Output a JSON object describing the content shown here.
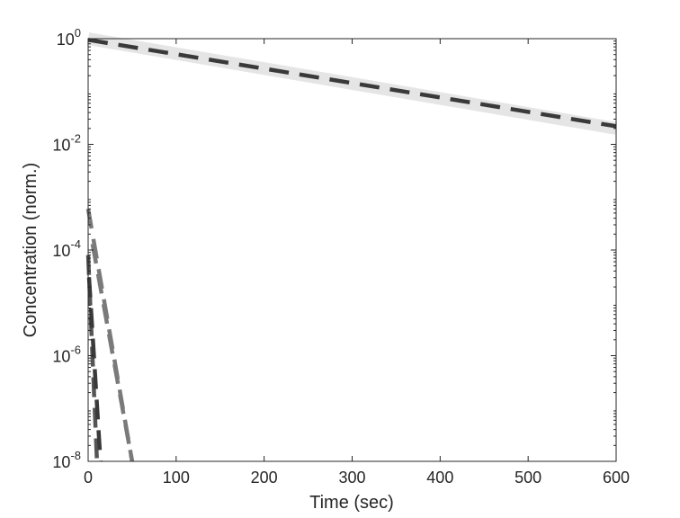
{
  "chart_data": {
    "type": "line",
    "xlabel": "Time (sec)",
    "ylabel": "Concentration (norm.)",
    "xlim": [
      0,
      600
    ],
    "ylim": [
      1e-08,
      1
    ],
    "yscale": "log",
    "grid": false,
    "xticks": [
      0,
      100,
      200,
      300,
      400,
      500,
      600
    ],
    "xtick_labels": [
      "0",
      "100",
      "200",
      "300",
      "400",
      "500",
      "600"
    ],
    "yticks": [
      1e-08,
      1e-06,
      0.0001,
      0.01,
      1
    ],
    "ytick_labels": [
      {
        "base": "10",
        "exp": "-8"
      },
      {
        "base": "10",
        "exp": "-6"
      },
      {
        "base": "10",
        "exp": "-4"
      },
      {
        "base": "10",
        "exp": "-2"
      },
      {
        "base": "10",
        "exp": "0"
      }
    ],
    "series": [
      {
        "style": "solid-wide",
        "color": "#e5e5e5",
        "x": [
          0,
          600
        ],
        "y": [
          1,
          0.02
        ]
      },
      {
        "style": "dashed",
        "color": "#3a3a3a",
        "x": [
          0,
          600
        ],
        "y": [
          0.95,
          0.022
        ]
      },
      {
        "style": "dashed",
        "color": "#7a7a7a",
        "x": [
          0,
          50
        ],
        "y": [
          0.0006,
          1e-08
        ]
      },
      {
        "style": "dashed",
        "color": "#7a7a7a",
        "x": [
          5,
          50
        ],
        "y": [
          0.00013,
          1e-08
        ]
      },
      {
        "style": "dashed",
        "color": "#555555",
        "x": [
          0,
          10
        ],
        "y": [
          8e-05,
          1e-08
        ]
      },
      {
        "style": "dashed",
        "color": "#3a3a3a",
        "x": [
          1,
          14
        ],
        "y": [
          3e-05,
          1e-08
        ]
      }
    ]
  }
}
